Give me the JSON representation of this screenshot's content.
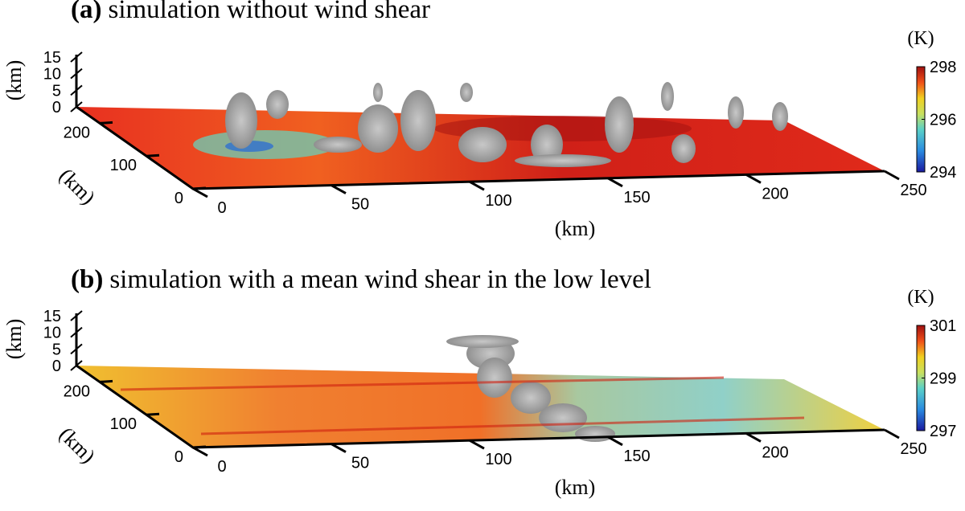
{
  "panels": [
    {
      "label": "(a)",
      "title": "simulation without wind shear",
      "z_unit": "(km)",
      "z_ticks": [
        15,
        10,
        5,
        0
      ],
      "y_unit": "(km)",
      "y_ticks": [
        200,
        100,
        0
      ],
      "x_unit": "(km)",
      "x_ticks": [
        0,
        50,
        100,
        150,
        200,
        250
      ],
      "colorbar": {
        "unit": "(K)",
        "ticks": [
          298,
          296,
          294
        ]
      }
    },
    {
      "label": "(b)",
      "title": "simulation with a mean wind shear in the low level",
      "z_unit": "(km)",
      "z_ticks": [
        15,
        10,
        5,
        0
      ],
      "y_unit": "(km)",
      "y_ticks": [
        200,
        100,
        0
      ],
      "x_unit": "(km)",
      "x_ticks": [
        0,
        50,
        100,
        150,
        200,
        250
      ],
      "colorbar": {
        "unit": "(K)",
        "ticks": [
          301,
          299,
          297
        ]
      }
    }
  ]
}
